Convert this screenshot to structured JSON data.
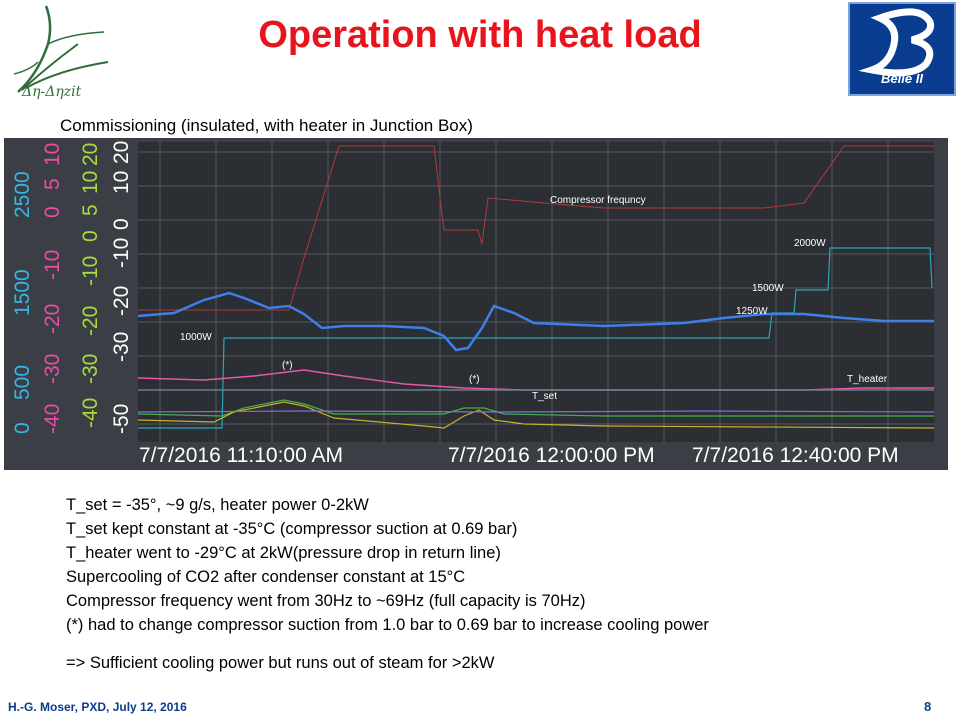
{
  "slide": {
    "title": "Operation with heat load",
    "subtitle": "Commissioning (insulated, with heater in Junction Box)",
    "logo_left_text": "Δη-Δηzit",
    "logo_right_text": "Belle II",
    "footer": "H.-G. Moser,  PXD, July 12, 2016",
    "page_number": "8",
    "notes": [
      "T_set = -35°, ~9 g/s, heater power 0-2kW",
      "T_set kept constant at -35°C (compressor suction at 0.69 bar)",
      "T_heater went to -29°C at 2kW(pressure drop in return line)",
      "Supercooling of CO2 after condenser constant at 15°C",
      "Compressor frequency went from 30Hz to ~69Hz (full capacity is 70Hz)",
      "(*) had to change compressor suction from 1.0 bar to 0.69 bar to increase cooling power"
    ],
    "conclusion": "=> Sufficient cooling power but runs out of steam for >2kW",
    "colors": {
      "title": "#e8141b",
      "footer": "#0b3c8c",
      "chart_bg": "#3b3f45"
    }
  },
  "chart_data": {
    "type": "line",
    "x_ticks": [
      "7/7/2016 11:10:00 AM",
      "7/7/2016 12:00:00 PM",
      "7/7/2016 12:40:00 PM"
    ],
    "y_axes": [
      {
        "color": "#35b6e6",
        "ticks": [
          "0",
          "500",
          "1500",
          "2500"
        ]
      },
      {
        "color": "#ee4aa8",
        "ticks": [
          "-40",
          "-30",
          "-20",
          "-10",
          "0",
          "5",
          "10"
        ]
      },
      {
        "color": "#a7dc3c",
        "ticks": [
          "-40",
          "-30",
          "-20",
          "-10",
          "0",
          "5",
          "10",
          "20"
        ]
      },
      {
        "color": "#ffffff",
        "ticks": [
          "-50",
          "-30",
          "-20",
          "-10",
          "0",
          "10",
          "20"
        ]
      }
    ],
    "annotations": [
      "Compressor frequncy",
      "2000W",
      "1500W",
      "1250W",
      "1000W",
      "(*)",
      "(*)",
      "T_set",
      "T_heater"
    ],
    "series_colors": {
      "compressor": "#b33a3a",
      "heater_power": "#2aa6b8",
      "flow": "#3f7fea",
      "t_heater": "#e55aa8",
      "t_set": "#6a7f8a",
      "yellow": "#c9b22a",
      "green": "#46b050",
      "purple": "#8a6ad8"
    },
    "grid": true
  }
}
